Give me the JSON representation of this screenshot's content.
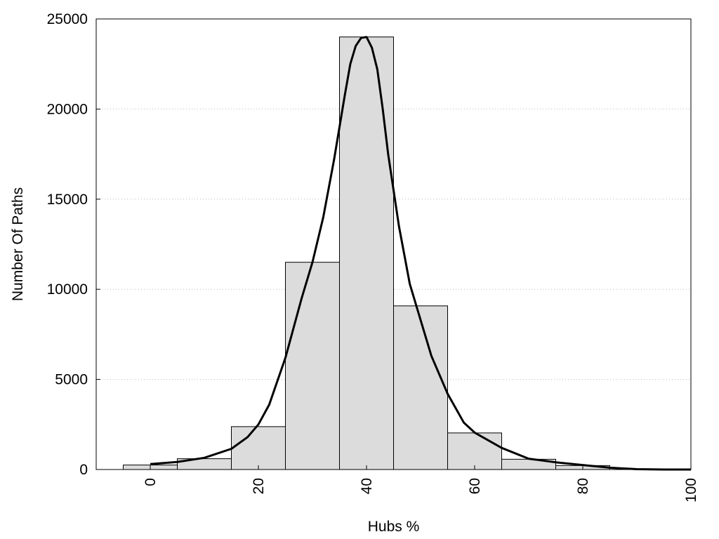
{
  "chart_data": {
    "type": "bar",
    "title": "",
    "xlabel": "Hubs %",
    "ylabel": "Number Of Paths",
    "xlim": [
      -10,
      100
    ],
    "ylim": [
      0,
      25000
    ],
    "x_ticks": [
      "0",
      "20",
      "40",
      "60",
      "80",
      "100"
    ],
    "y_ticks": [
      "0",
      "5000",
      "10000",
      "15000",
      "20000",
      "25000"
    ],
    "grid": "horizontal dotted",
    "bin_width": 10,
    "bins": [
      {
        "center": 0,
        "value": 250
      },
      {
        "center": 10,
        "value": 600
      },
      {
        "center": 20,
        "value": 2380
      },
      {
        "center": 30,
        "value": 11500
      },
      {
        "center": 40,
        "value": 24000
      },
      {
        "center": 50,
        "value": 9080
      },
      {
        "center": 60,
        "value": 2030
      },
      {
        "center": 70,
        "value": 570
      },
      {
        "center": 80,
        "value": 220
      },
      {
        "center": 90,
        "value": 0
      }
    ],
    "curve": {
      "x": [
        0,
        5,
        10,
        15,
        18,
        20,
        22,
        25,
        28,
        30,
        32,
        34,
        36,
        37,
        38,
        39,
        40,
        41,
        42,
        43,
        44,
        46,
        48,
        50,
        52,
        55,
        58,
        60,
        65,
        70,
        75,
        80,
        85,
        90,
        95,
        100
      ],
      "y": [
        300,
        420,
        650,
        1150,
        1800,
        2500,
        3600,
        6200,
        9500,
        11500,
        14000,
        17200,
        20800,
        22500,
        23500,
        23950,
        24000,
        23400,
        22200,
        20000,
        17500,
        13500,
        10300,
        8300,
        6300,
        4200,
        2600,
        2050,
        1200,
        600,
        400,
        250,
        100,
        20,
        0,
        0
      ],
      "color": "#000000"
    },
    "bar_fill": "#dcdcdc",
    "bar_stroke": "#000000"
  }
}
